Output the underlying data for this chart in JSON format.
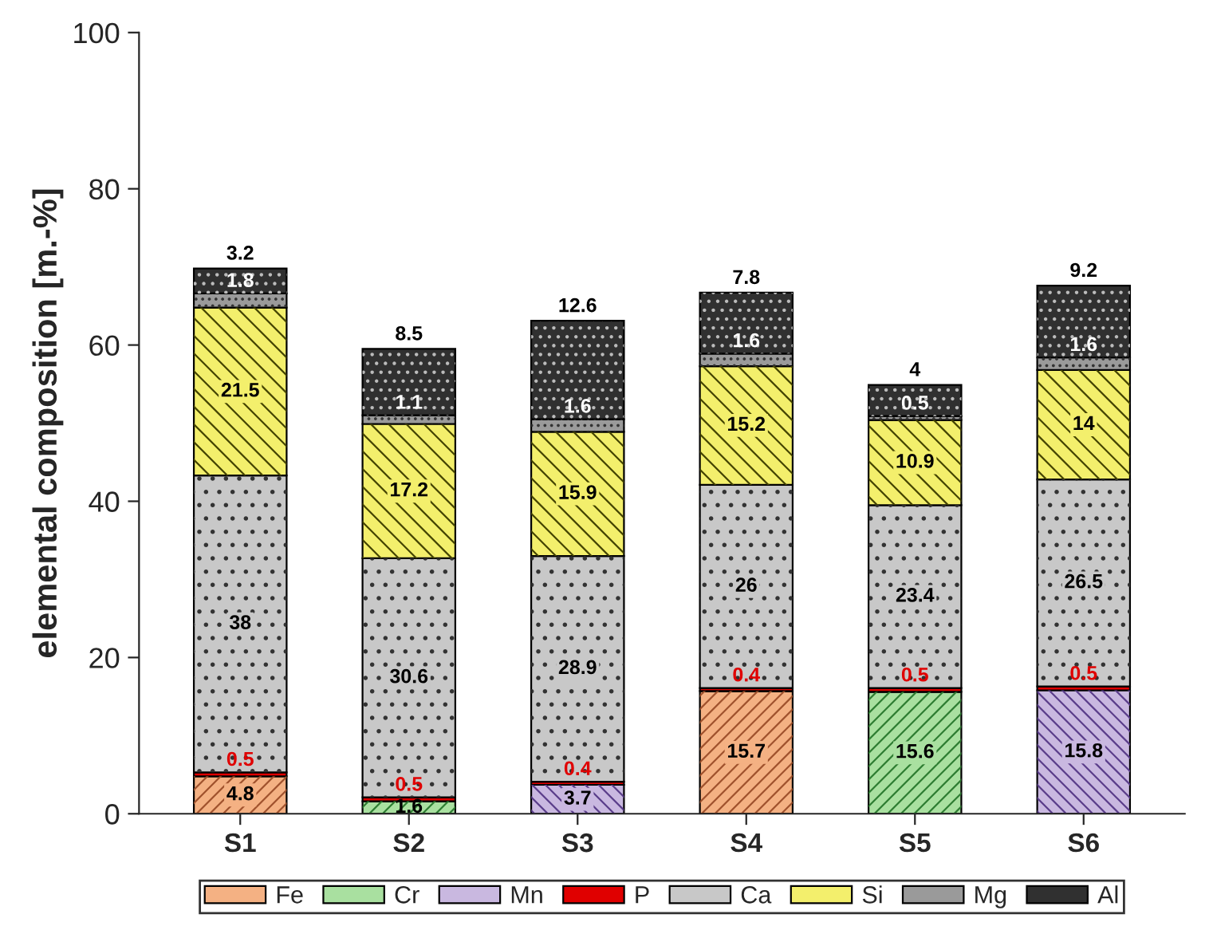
{
  "chart_data": {
    "type": "bar",
    "stacked": true,
    "ylabel": "elemental composition [m.-%]",
    "categories": [
      "S1",
      "S2",
      "S3",
      "S4",
      "S5",
      "S6"
    ],
    "series": [
      {
        "name": "Fe",
        "color": "#f4b183",
        "values": [
          4.8,
          null,
          null,
          15.7,
          null,
          null
        ],
        "value_labels": [
          "4.8",
          null,
          null,
          "15.7",
          null,
          null
        ]
      },
      {
        "name": "Cr",
        "color": "#a9e0a0",
        "values": [
          null,
          1.6,
          null,
          null,
          15.6,
          null
        ],
        "value_labels": [
          null,
          "1.6",
          null,
          null,
          "15.6",
          null
        ]
      },
      {
        "name": "Mn",
        "color": "#c9b8e0",
        "values": [
          null,
          null,
          3.7,
          null,
          null,
          15.8
        ],
        "value_labels": [
          null,
          null,
          "3.7",
          null,
          null,
          "15.8"
        ]
      },
      {
        "name": "P",
        "color": "#e00000",
        "values": [
          0.5,
          0.5,
          0.4,
          0.4,
          0.5,
          0.5
        ],
        "value_labels": [
          "0.5",
          "0.5",
          "0.4",
          "0.4",
          "0.5",
          "0.5"
        ]
      },
      {
        "name": "Ca",
        "color": "#c8c8c8",
        "values": [
          38,
          30.6,
          28.9,
          26,
          23.4,
          26.5
        ],
        "value_labels": [
          "38",
          "30.6",
          "28.9",
          "26",
          "23.4",
          "26.5"
        ]
      },
      {
        "name": "Si",
        "color": "#f3ef6c",
        "values": [
          21.5,
          17.2,
          15.9,
          15.2,
          10.9,
          14
        ],
        "value_labels": [
          "21.5",
          "17.2",
          "15.9",
          "15.2",
          "10.9",
          "14"
        ]
      },
      {
        "name": "Mg",
        "color": "#9a9a9a",
        "values": [
          1.8,
          1.1,
          1.6,
          1.6,
          0.5,
          1.6
        ],
        "value_labels": [
          "1.8",
          "1.1",
          "1.6",
          "1.6",
          "0.5",
          "1.6"
        ]
      },
      {
        "name": "Al",
        "color": "#303030",
        "values": [
          3.2,
          8.5,
          12.6,
          7.8,
          4,
          9.2
        ],
        "value_labels": [
          "3.2",
          "8.5",
          "12.6",
          "7.8",
          "4",
          "9.2"
        ]
      }
    ],
    "ylim": [
      0,
      100
    ],
    "yticks": [
      0,
      20,
      40,
      60,
      80,
      100
    ],
    "grid": false,
    "legend": "bottom"
  }
}
